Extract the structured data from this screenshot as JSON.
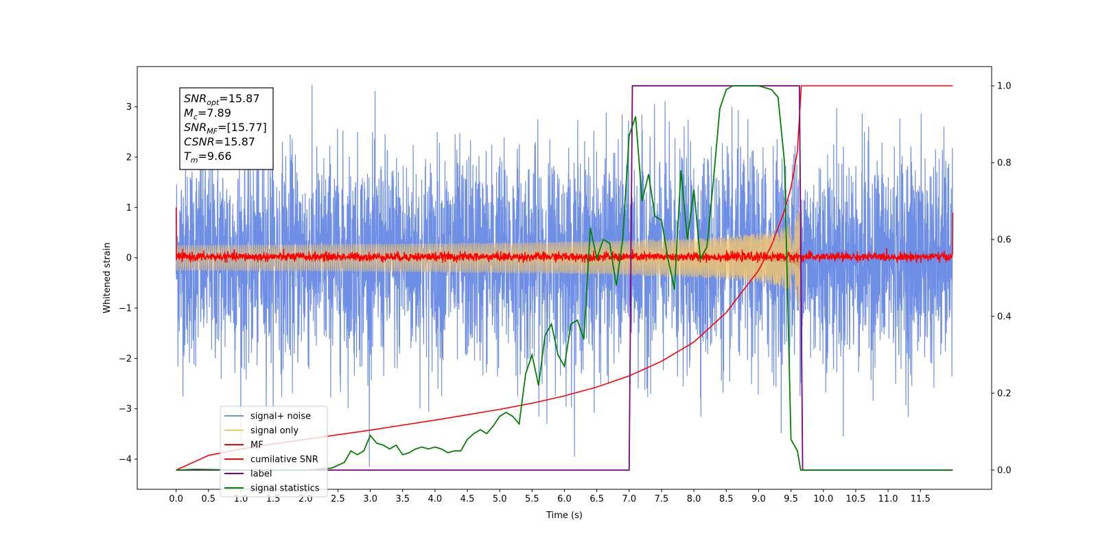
{
  "chart_data": {
    "type": "line",
    "xlabel": "Time (s)",
    "ylabel": "Whitened strain",
    "ylabel_right": "",
    "xlim": [
      -0.6,
      12.6
    ],
    "ylim": [
      -4.6,
      3.8
    ],
    "ylim_right": [
      -0.05,
      1.05
    ],
    "x_ticks": [
      "0.0",
      "0.5",
      "1.0",
      "1.5",
      "2.0",
      "2.5",
      "3.0",
      "3.5",
      "4.0",
      "4.5",
      "5.0",
      "5.5",
      "6.0",
      "6.5",
      "7.0",
      "7.5",
      "8.0",
      "8.5",
      "9.0",
      "9.5",
      "10.0",
      "10.5",
      "11.0",
      "11.5"
    ],
    "y_ticks_left": [
      "3",
      "2",
      "1",
      "0",
      "−1",
      "−2",
      "−3",
      "−4"
    ],
    "y_ticks_right": [
      "1.0",
      "0.8",
      "0.6",
      "0.4",
      "0.2",
      "0.0"
    ],
    "grid": false,
    "legend_position": "lower-left",
    "annotation": {
      "lines": [
        {
          "sym": "SNR",
          "sub": "opt",
          "value": "=15.87"
        },
        {
          "sym": "M",
          "sub": "c",
          "value": "=7.89"
        },
        {
          "sym": "SNR",
          "sub": "MF",
          "value": "=[15.77]"
        },
        {
          "sym": "CSNR",
          "sub": "",
          "value": "=15.87"
        },
        {
          "sym": "T",
          "sub": "m",
          "value": "=9.66"
        }
      ]
    },
    "series": [
      {
        "name": "signal+ noise",
        "color": "#6f8fe6",
        "axis": "left",
        "kind": "noise",
        "x_range": [
          0.0,
          12.0
        ],
        "y_envelope": [
          -4.15,
          3.45
        ]
      },
      {
        "name": "signal only",
        "color": "#f5c56a",
        "axis": "left",
        "kind": "chirp",
        "x_range": [
          0.0,
          9.66
        ],
        "amp_end": 0.9
      },
      {
        "name": "MF",
        "color": "#ff0000",
        "axis": "left",
        "kind": "noise",
        "x_range": [
          0.0,
          12.0
        ],
        "y_envelope": [
          -0.1,
          0.2
        ],
        "edge_values": [
          1.0,
          0.9
        ]
      },
      {
        "name": "cumilative SNR",
        "color": "#ff0000",
        "axis": "right",
        "x": [
          0.0,
          0.5,
          1.0,
          1.5,
          2.0,
          2.5,
          3.0,
          3.5,
          4.0,
          4.5,
          5.0,
          5.5,
          6.0,
          6.5,
          7.0,
          7.5,
          8.0,
          8.5,
          9.0,
          9.2,
          9.4,
          9.5,
          9.6,
          9.66,
          12.0
        ],
        "y": [
          0.0,
          0.038,
          0.055,
          0.068,
          0.08,
          0.092,
          0.104,
          0.117,
          0.13,
          0.144,
          0.158,
          0.174,
          0.193,
          0.216,
          0.245,
          0.283,
          0.333,
          0.41,
          0.52,
          0.585,
          0.675,
          0.735,
          0.83,
          1.0,
          1.0
        ]
      },
      {
        "name": "label",
        "color": "#800080",
        "axis": "right",
        "x": [
          0.0,
          7.0,
          7.05,
          9.63,
          9.68,
          12.0
        ],
        "y": [
          0.0,
          0.0,
          1.0,
          1.0,
          0.0,
          0.0
        ]
      },
      {
        "name": "signal statistics",
        "color": "#008000",
        "axis": "right",
        "x": [
          0.0,
          0.3,
          1.0,
          2.0,
          2.4,
          2.6,
          2.7,
          2.8,
          2.9,
          3.0,
          3.1,
          3.2,
          3.3,
          3.4,
          3.5,
          3.6,
          3.7,
          3.8,
          3.9,
          4.0,
          4.1,
          4.2,
          4.3,
          4.4,
          4.5,
          4.6,
          4.7,
          4.8,
          4.9,
          5.0,
          5.1,
          5.2,
          5.3,
          5.4,
          5.5,
          5.6,
          5.7,
          5.8,
          5.9,
          6.0,
          6.1,
          6.2,
          6.3,
          6.4,
          6.5,
          6.6,
          6.7,
          6.8,
          6.9,
          7.0,
          7.1,
          7.2,
          7.3,
          7.4,
          7.5,
          7.6,
          7.7,
          7.8,
          7.9,
          8.0,
          8.1,
          8.2,
          8.3,
          8.4,
          8.5,
          8.6,
          8.7,
          8.8,
          9.0,
          9.2,
          9.3,
          9.4,
          9.5,
          9.6,
          9.65,
          9.7,
          12.0
        ],
        "y": [
          0.0,
          0.002,
          0.0,
          0.0,
          0.005,
          0.02,
          0.05,
          0.04,
          0.05,
          0.09,
          0.07,
          0.065,
          0.055,
          0.065,
          0.04,
          0.045,
          0.055,
          0.06,
          0.055,
          0.06,
          0.055,
          0.045,
          0.05,
          0.05,
          0.08,
          0.095,
          0.105,
          0.095,
          0.115,
          0.14,
          0.15,
          0.14,
          0.12,
          0.25,
          0.3,
          0.22,
          0.35,
          0.38,
          0.3,
          0.27,
          0.38,
          0.39,
          0.34,
          0.63,
          0.55,
          0.6,
          0.59,
          0.48,
          0.6,
          0.87,
          0.92,
          0.7,
          0.77,
          0.66,
          0.65,
          0.55,
          0.47,
          0.78,
          0.6,
          0.73,
          0.55,
          0.58,
          0.75,
          0.94,
          0.99,
          1.0,
          1.0,
          1.0,
          1.0,
          0.99,
          0.97,
          0.8,
          0.08,
          0.05,
          0.0,
          0.0,
          0.0
        ]
      }
    ]
  }
}
